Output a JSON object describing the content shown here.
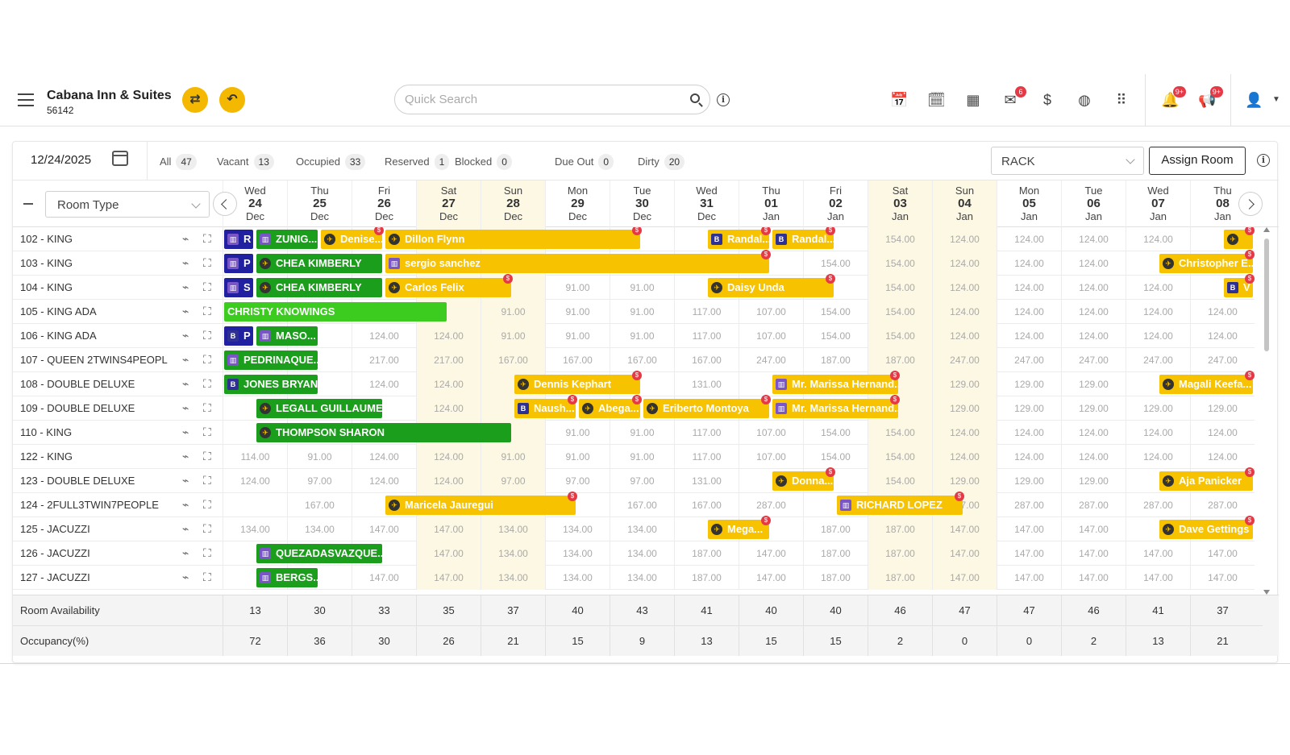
{
  "header": {
    "hotel_name": "Cabana Inn & Suites",
    "hotel_id": "56142",
    "search_placeholder": "Quick Search",
    "badges": {
      "mail": "6",
      "notifications": "9+",
      "announcements": "9+"
    }
  },
  "filters": {
    "date": "12/24/2025",
    "items": [
      {
        "label": "All",
        "count": "47"
      },
      {
        "label": "Vacant",
        "count": "13"
      },
      {
        "label": "Occupied",
        "count": "33"
      },
      {
        "label": "Reserved",
        "count": "1"
      },
      {
        "label": "Blocked",
        "count": "0"
      },
      {
        "label": "Due Out",
        "count": "0"
      },
      {
        "label": "Dirty",
        "count": "20"
      }
    ],
    "rate_plan": "RACK",
    "assign_label": "Assign Room"
  },
  "room_type_label": "Room Type",
  "days": [
    {
      "dow": "Wed",
      "d": "24",
      "m": "Dec"
    },
    {
      "dow": "Thu",
      "d": "25",
      "m": "Dec"
    },
    {
      "dow": "Fri",
      "d": "26",
      "m": "Dec"
    },
    {
      "dow": "Sat",
      "d": "27",
      "m": "Dec",
      "weekend": true
    },
    {
      "dow": "Sun",
      "d": "28",
      "m": "Dec",
      "weekend": true
    },
    {
      "dow": "Mon",
      "d": "29",
      "m": "Dec"
    },
    {
      "dow": "Tue",
      "d": "30",
      "m": "Dec"
    },
    {
      "dow": "Wed",
      "d": "31",
      "m": "Dec"
    },
    {
      "dow": "Thu",
      "d": "01",
      "m": "Jan"
    },
    {
      "dow": "Fri",
      "d": "02",
      "m": "Jan"
    },
    {
      "dow": "Sat",
      "d": "03",
      "m": "Jan",
      "weekend": true
    },
    {
      "dow": "Sun",
      "d": "04",
      "m": "Jan",
      "weekend": true
    },
    {
      "dow": "Mon",
      "d": "05",
      "m": "Jan"
    },
    {
      "dow": "Tue",
      "d": "06",
      "m": "Jan"
    },
    {
      "dow": "Wed",
      "d": "07",
      "m": "Jan"
    },
    {
      "dow": "Thu",
      "d": "08",
      "m": "Jan"
    }
  ],
  "rooms": [
    {
      "name": "102 - KING",
      "rates": [
        "",
        "",
        "",
        "",
        "",
        "",
        "",
        "",
        "",
        "",
        "154.00",
        "124.00",
        "124.00",
        "124.00",
        "124.00",
        ""
      ]
    },
    {
      "name": "103 - KING",
      "rates": [
        "",
        "",
        "",
        "",
        "",
        "",
        "",
        "",
        "",
        "154.00",
        "154.00",
        "124.00",
        "124.00",
        "124.00",
        "",
        ""
      ]
    },
    {
      "name": "104 - KING",
      "rates": [
        "",
        "",
        "",
        "",
        "",
        "91.00",
        "91.00",
        "",
        "",
        "",
        "154.00",
        "124.00",
        "124.00",
        "124.00",
        "124.00",
        ""
      ]
    },
    {
      "name": "105 - KING ADA",
      "rates": [
        "",
        "",
        "",
        "",
        "91.00",
        "91.00",
        "91.00",
        "117.00",
        "107.00",
        "154.00",
        "154.00",
        "124.00",
        "124.00",
        "124.00",
        "124.00",
        "124.00"
      ]
    },
    {
      "name": "106 - KING ADA",
      "rates": [
        "",
        "",
        "124.00",
        "124.00",
        "91.00",
        "91.00",
        "91.00",
        "117.00",
        "107.00",
        "154.00",
        "154.00",
        "124.00",
        "124.00",
        "124.00",
        "124.00",
        "124.00"
      ]
    },
    {
      "name": "107 - QUEEN 2TWINS4PEOPL",
      "rates": [
        "",
        "",
        "217.00",
        "217.00",
        "167.00",
        "167.00",
        "167.00",
        "167.00",
        "247.00",
        "187.00",
        "187.00",
        "247.00",
        "247.00",
        "247.00",
        "247.00",
        "247.00"
      ]
    },
    {
      "name": "108 - DOUBLE DELUXE",
      "rates": [
        "",
        "",
        "124.00",
        "124.00",
        "",
        "",
        "",
        "131.00",
        "",
        "",
        "",
        "129.00",
        "129.00",
        "129.00",
        "",
        ""
      ]
    },
    {
      "name": "109 - DOUBLE DELUXE",
      "rates": [
        "",
        "",
        "",
        "124.00",
        "",
        "",
        "",
        "",
        "",
        "",
        "",
        "129.00",
        "129.00",
        "129.00",
        "129.00",
        "129.00"
      ]
    },
    {
      "name": "110 - KING",
      "rates": [
        "",
        "",
        "",
        "",
        "",
        "91.00",
        "91.00",
        "117.00",
        "107.00",
        "154.00",
        "154.00",
        "124.00",
        "124.00",
        "124.00",
        "124.00",
        "124.00"
      ]
    },
    {
      "name": "122 - KING",
      "rates": [
        "114.00",
        "91.00",
        "124.00",
        "124.00",
        "91.00",
        "91.00",
        "91.00",
        "117.00",
        "107.00",
        "154.00",
        "154.00",
        "124.00",
        "124.00",
        "124.00",
        "124.00",
        "124.00"
      ]
    },
    {
      "name": "123 - DOUBLE DELUXE",
      "rates": [
        "124.00",
        "97.00",
        "124.00",
        "124.00",
        "97.00",
        "97.00",
        "97.00",
        "131.00",
        "",
        "",
        "154.00",
        "129.00",
        "129.00",
        "129.00",
        "",
        ""
      ]
    },
    {
      "name": "124 - 2FULL3TWIN7PEOPLE",
      "rates": [
        "",
        "167.00",
        "",
        "",
        "",
        "",
        "167.00",
        "167.00",
        "287.00",
        "",
        "",
        "287.00",
        "287.00",
        "287.00",
        "287.00",
        "287.00"
      ]
    },
    {
      "name": "125 - JACUZZI",
      "rates": [
        "134.00",
        "134.00",
        "147.00",
        "147.00",
        "134.00",
        "134.00",
        "134.00",
        "",
        "",
        "187.00",
        "187.00",
        "147.00",
        "147.00",
        "147.00",
        "",
        ""
      ]
    },
    {
      "name": "126 - JACUZZI",
      "rates": [
        "",
        "",
        "",
        "147.00",
        "134.00",
        "134.00",
        "134.00",
        "187.00",
        "147.00",
        "187.00",
        "187.00",
        "147.00",
        "147.00",
        "147.00",
        "147.00",
        "147.00"
      ]
    },
    {
      "name": "127 - JACUZZI",
      "rates": [
        "",
        "",
        "147.00",
        "147.00",
        "134.00",
        "134.00",
        "134.00",
        "187.00",
        "147.00",
        "187.00",
        "187.00",
        "147.00",
        "147.00",
        "147.00",
        "147.00",
        "147.00"
      ]
    }
  ],
  "bookings": [
    {
      "row": 0,
      "s": 0,
      "w": 0.5,
      "c": "bl",
      "t": "R",
      "ic": "sq"
    },
    {
      "row": 0,
      "s": 0.5,
      "w": 1,
      "c": "gr",
      "t": "ZUNIG...",
      "ic": "sq"
    },
    {
      "row": 0,
      "s": 1.5,
      "w": 1,
      "c": "yl",
      "t": "Denise...",
      "ic": "pl",
      "dol": 1
    },
    {
      "row": 0,
      "s": 2.5,
      "w": 4,
      "c": "yl",
      "t": "Dillon Flynn",
      "ic": "pl",
      "dol": 1
    },
    {
      "row": 0,
      "s": 7.5,
      "w": 1,
      "c": "yl",
      "t": "Randal...",
      "ic": "b",
      "dol": 1
    },
    {
      "row": 0,
      "s": 8.5,
      "w": 1,
      "c": "yl",
      "t": "Randal...",
      "ic": "b",
      "dol": 1
    },
    {
      "row": 0,
      "s": 15.5,
      "w": 0.5,
      "c": "yl",
      "t": "",
      "ic": "pl",
      "dol": 1
    },
    {
      "row": 1,
      "s": 0,
      "w": 0.5,
      "c": "bl",
      "t": "P",
      "ic": "sq"
    },
    {
      "row": 1,
      "s": 0.5,
      "w": 2,
      "c": "gr",
      "t": "CHEA KIMBERLY",
      "ic": "pl"
    },
    {
      "row": 1,
      "s": 2.5,
      "w": 6,
      "c": "yl",
      "t": "sergio sanchez",
      "ic": "sq",
      "dol": 1
    },
    {
      "row": 1,
      "s": 14.5,
      "w": 1.5,
      "c": "yl",
      "t": "Christopher E...",
      "ic": "pl",
      "dol": 1
    },
    {
      "row": 2,
      "s": 0,
      "w": 0.5,
      "c": "bl",
      "t": "S",
      "ic": "sq"
    },
    {
      "row": 2,
      "s": 0.5,
      "w": 2,
      "c": "gr",
      "t": "CHEA KIMBERLY",
      "ic": "pl"
    },
    {
      "row": 2,
      "s": 2.5,
      "w": 2,
      "c": "yl",
      "t": "Carlos Felix",
      "ic": "pl",
      "dol": 1
    },
    {
      "row": 2,
      "s": 7.5,
      "w": 2,
      "c": "yl",
      "t": "Daisy Unda",
      "ic": "pl",
      "dol": 1
    },
    {
      "row": 2,
      "s": 15.5,
      "w": 0.5,
      "c": "yl",
      "t": "V",
      "ic": "b",
      "dol": 1
    },
    {
      "row": 3,
      "s": 0,
      "w": 3.5,
      "c": "bg",
      "t": "CHRISTY KNOWINGS",
      "ic": "none"
    },
    {
      "row": 4,
      "s": 0,
      "w": 0.5,
      "c": "bl",
      "t": "P",
      "ic": "b"
    },
    {
      "row": 4,
      "s": 0.5,
      "w": 1,
      "c": "gr",
      "t": "MASO...",
      "ic": "sq"
    },
    {
      "row": 5,
      "s": 0,
      "w": 1.5,
      "c": "gr",
      "t": "PEDRINAQUE...",
      "ic": "sq"
    },
    {
      "row": 6,
      "s": 0,
      "w": 1.5,
      "c": "gr",
      "t": "JONES BRYANT",
      "ic": "b"
    },
    {
      "row": 6,
      "s": 4.5,
      "w": 2,
      "c": "yl",
      "t": "Dennis Kephart",
      "ic": "pl",
      "dol": 1
    },
    {
      "row": 6,
      "s": 8.5,
      "w": 2,
      "c": "yl",
      "t": "Mr. Marissa Hernand...",
      "ic": "sq",
      "dol": 1
    },
    {
      "row": 6,
      "s": 14.5,
      "w": 1.5,
      "c": "yl",
      "t": "Magali Keefa...",
      "ic": "pl",
      "dol": 1
    },
    {
      "row": 7,
      "s": 0.5,
      "w": 2,
      "c": "gr",
      "t": "LEGALL GUILLAUME",
      "ic": "pl"
    },
    {
      "row": 7,
      "s": 4.5,
      "w": 1,
      "c": "yl",
      "t": "Naush...",
      "ic": "b",
      "dol": 1
    },
    {
      "row": 7,
      "s": 5.5,
      "w": 1,
      "c": "yl",
      "t": "Abega...",
      "ic": "pl",
      "dol": 1
    },
    {
      "row": 7,
      "s": 6.5,
      "w": 2,
      "c": "yl",
      "t": "Eriberto Montoya",
      "ic": "pl",
      "dol": 1
    },
    {
      "row": 7,
      "s": 8.5,
      "w": 2,
      "c": "yl",
      "t": "Mr. Marissa Hernand...",
      "ic": "sq",
      "dol": 1
    },
    {
      "row": 8,
      "s": 0.5,
      "w": 4,
      "c": "gr",
      "t": "THOMPSON SHARON",
      "ic": "pl"
    },
    {
      "row": 10,
      "s": 8.5,
      "w": 1,
      "c": "yl",
      "t": "Donna...",
      "ic": "pl",
      "dol": 1
    },
    {
      "row": 10,
      "s": 14.5,
      "w": 1.5,
      "c": "yl",
      "t": "Aja Panicker",
      "ic": "pl",
      "dol": 1
    },
    {
      "row": 11,
      "s": 2.5,
      "w": 3,
      "c": "yl",
      "t": "Maricela Jauregui",
      "ic": "pl",
      "dol": 1
    },
    {
      "row": 11,
      "s": 9.5,
      "w": 2,
      "c": "yl",
      "t": "RICHARD LOPEZ",
      "ic": "sq",
      "dol": 1
    },
    {
      "row": 12,
      "s": 7.5,
      "w": 1,
      "c": "yl",
      "t": "Mega...",
      "ic": "pl",
      "dol": 1
    },
    {
      "row": 12,
      "s": 14.5,
      "w": 1.5,
      "c": "yl",
      "t": "Dave Gettings",
      "ic": "pl",
      "dol": 1
    },
    {
      "row": 13,
      "s": 0.5,
      "w": 2,
      "c": "gr",
      "t": "QUEZADASVAZQUE...",
      "ic": "sq"
    },
    {
      "row": 14,
      "s": 0.5,
      "w": 1,
      "c": "gr",
      "t": "BERGS...",
      "ic": "sq"
    }
  ],
  "footer": {
    "availability_label": "Room Availability",
    "availability": [
      "13",
      "30",
      "33",
      "35",
      "37",
      "40",
      "43",
      "41",
      "40",
      "40",
      "46",
      "47",
      "47",
      "46",
      "41",
      "37"
    ],
    "occupancy_label": "Occupancy(%)",
    "occupancy": [
      "72",
      "36",
      "30",
      "26",
      "21",
      "15",
      "9",
      "13",
      "15",
      "15",
      "2",
      "0",
      "0",
      "2",
      "13",
      "21"
    ]
  }
}
